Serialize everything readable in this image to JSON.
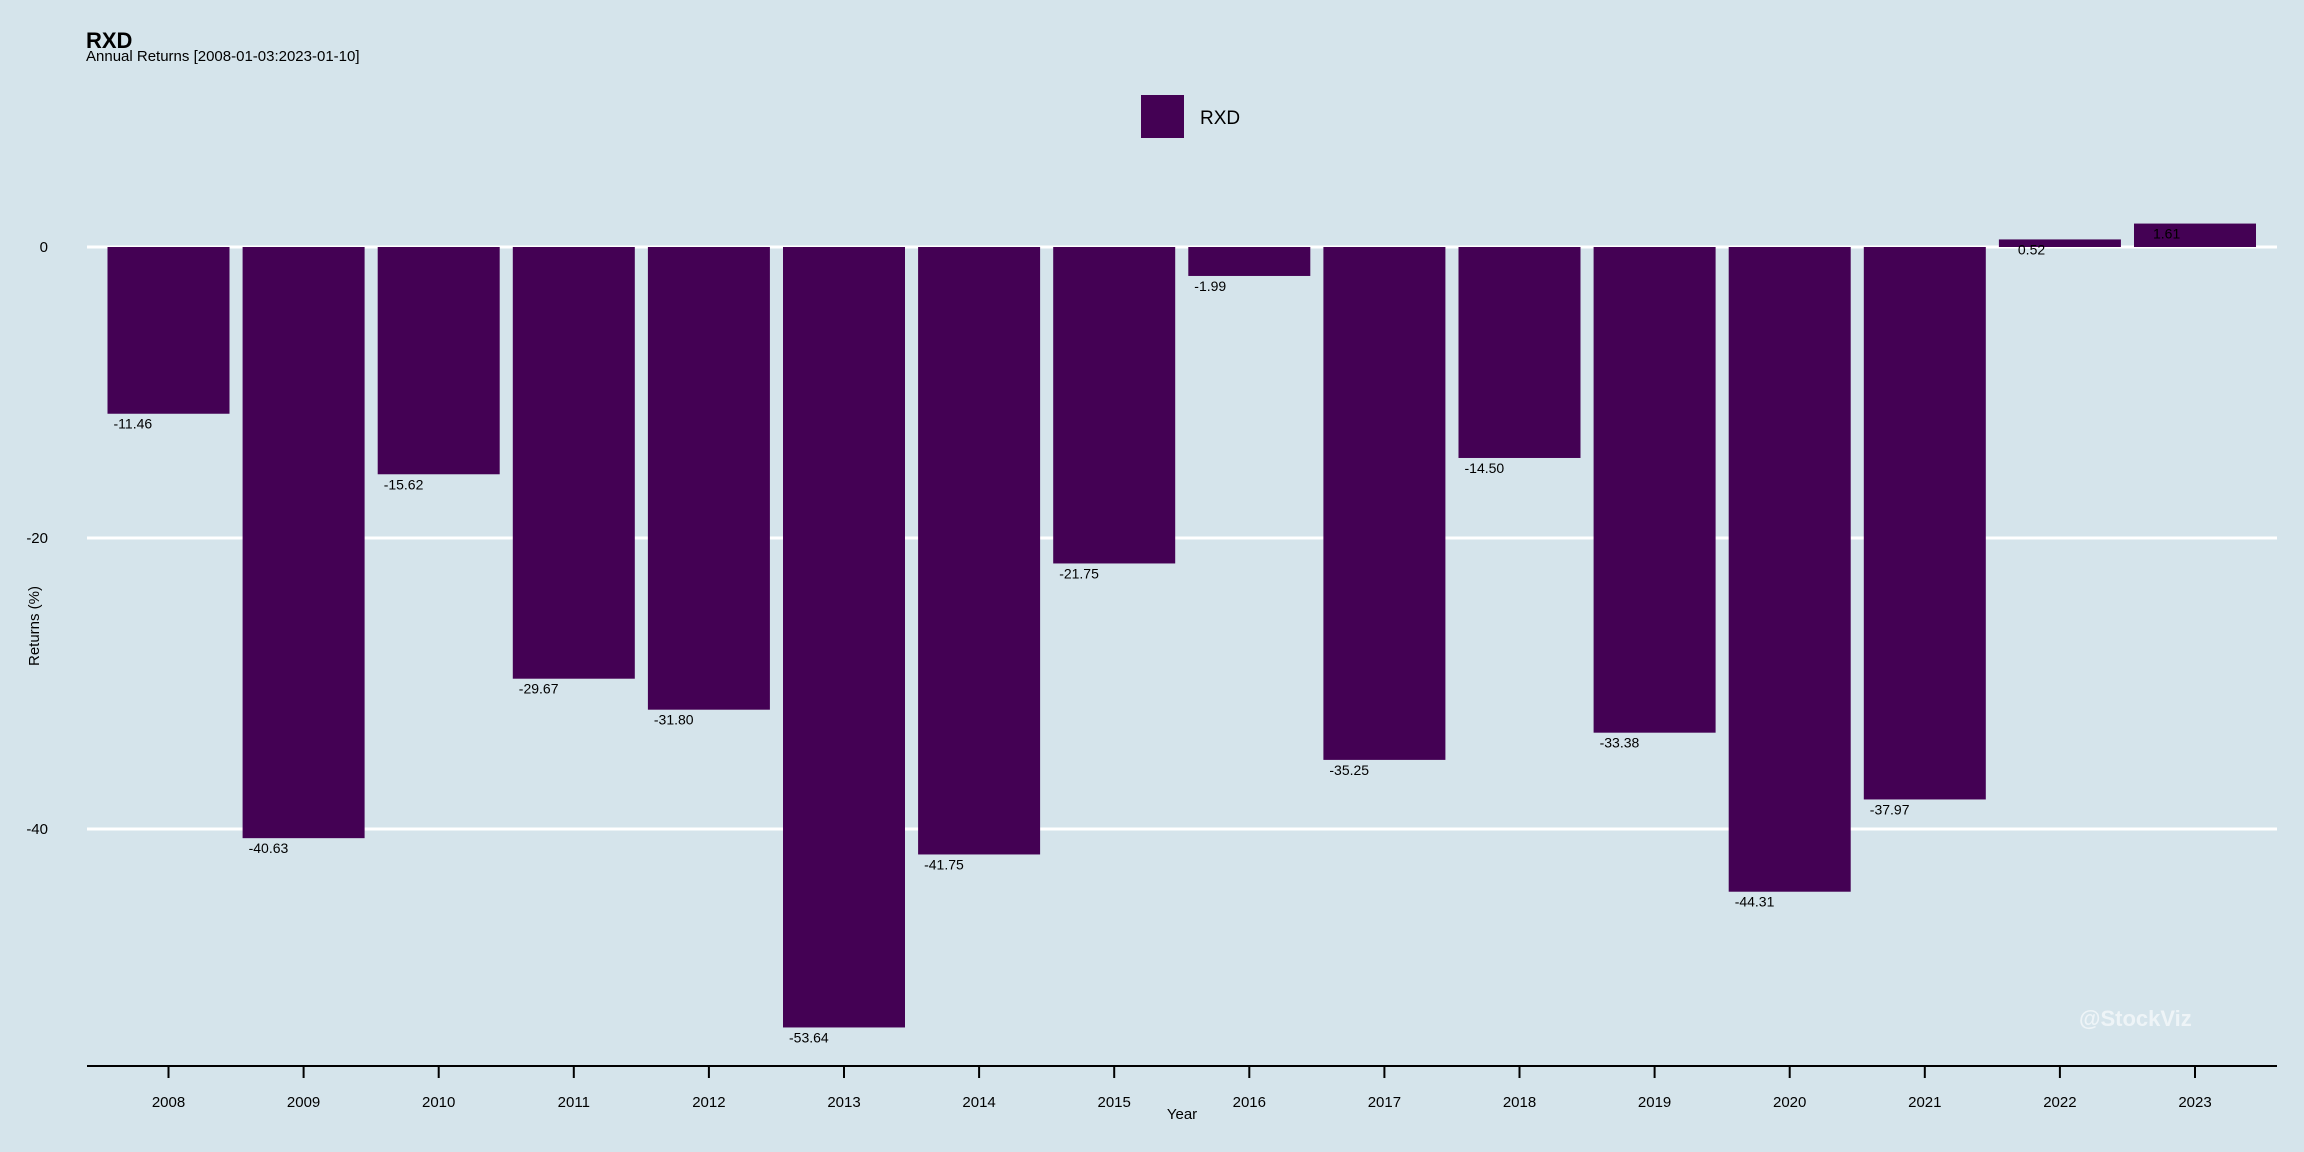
{
  "header": {
    "title": "RXD",
    "subtitle": "Annual Returns [2008-01-03:2023-01-10]"
  },
  "watermark": "@StockViz",
  "colors": {
    "background": "#d5e4eb",
    "bar": "#440154",
    "grid": "#ffffff",
    "axis": "#000000"
  },
  "chart_data": {
    "type": "bar",
    "xlabel": "Year",
    "ylabel": "Returns (%)",
    "categories": [
      "2008",
      "2009",
      "2010",
      "2011",
      "2012",
      "2013",
      "2014",
      "2015",
      "2016",
      "2017",
      "2018",
      "2019",
      "2020",
      "2021",
      "2022",
      "2023"
    ],
    "series": [
      {
        "name": "RXD",
        "values": [
          -11.46,
          -40.63,
          -15.62,
          -29.67,
          -31.8,
          -53.64,
          -41.75,
          -21.75,
          -1.99,
          -35.25,
          -14.5,
          -33.38,
          -44.31,
          -37.97,
          0.52,
          1.61
        ],
        "labels": [
          "-11.46",
          "-40.63",
          "-15.62",
          "-29.67",
          "-31.80",
          "-53.64",
          "-41.75",
          "-21.75",
          "-1.99",
          "-35.25",
          "-14.50",
          "-33.38",
          "-44.31",
          "-37.97",
          "0.52",
          "1.61"
        ]
      }
    ],
    "yticks": [
      0,
      -20,
      -40
    ],
    "ylim": [
      -56.3,
      0
    ],
    "grid": true,
    "legend": "top-center"
  }
}
